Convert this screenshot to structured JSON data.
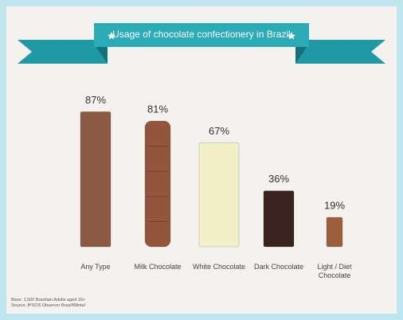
{
  "chart_data": {
    "type": "bar",
    "title": "Usage of chocolate confectionery in Brazil",
    "categories": [
      "Any Type",
      "Milk Chocolate",
      "White Chocolate",
      "Dark Chocolate",
      "Light / Diet Chocolate"
    ],
    "values": [
      87,
      81,
      67,
      36,
      19
    ],
    "value_labels": [
      "87%",
      "81%",
      "67%",
      "36%",
      "19%"
    ],
    "colors": [
      "#8b5a43",
      "#93563d",
      "#f3efc6",
      "#3b2320",
      "#9c5f3d"
    ],
    "footnotes": [
      "Base: 1,500 Brazilian Adults aged 16+",
      "Source: IPSOS Observer Brazil/Mintel"
    ]
  }
}
